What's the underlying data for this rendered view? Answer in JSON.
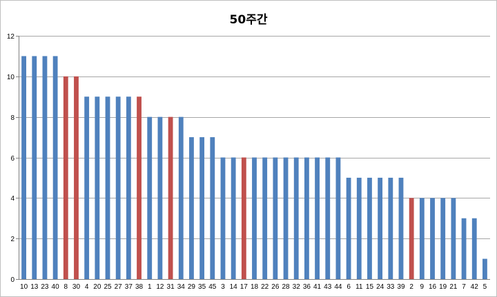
{
  "chart_data": {
    "type": "bar",
    "title": "50주간",
    "xlabel": "",
    "ylabel": "",
    "ylim": [
      0,
      12
    ],
    "yticks": [
      0,
      2,
      4,
      6,
      8,
      10,
      12
    ],
    "grid": true,
    "legend": "none",
    "colors": {
      "default": "#4f81bd",
      "highlight": "#c0504d",
      "grid": "#a6a6a6"
    },
    "categories": [
      "10",
      "13",
      "23",
      "40",
      "8",
      "30",
      "4",
      "20",
      "25",
      "27",
      "37",
      "38",
      "1",
      "12",
      "31",
      "34",
      "29",
      "35",
      "45",
      "3",
      "14",
      "17",
      "18",
      "22",
      "26",
      "28",
      "32",
      "36",
      "41",
      "43",
      "44",
      "6",
      "11",
      "15",
      "24",
      "33",
      "39",
      "2",
      "9",
      "16",
      "19",
      "21",
      "7",
      "42",
      "5"
    ],
    "values": [
      11,
      11,
      11,
      11,
      10,
      10,
      9,
      9,
      9,
      9,
      9,
      9,
      8,
      8,
      8,
      8,
      7,
      7,
      7,
      6,
      6,
      6,
      6,
      6,
      6,
      6,
      6,
      6,
      6,
      6,
      6,
      5,
      5,
      5,
      5,
      5,
      5,
      4,
      4,
      4,
      4,
      4,
      3,
      3,
      1
    ],
    "highlighted": [
      "8",
      "30",
      "38",
      "31",
      "17",
      "2"
    ]
  }
}
